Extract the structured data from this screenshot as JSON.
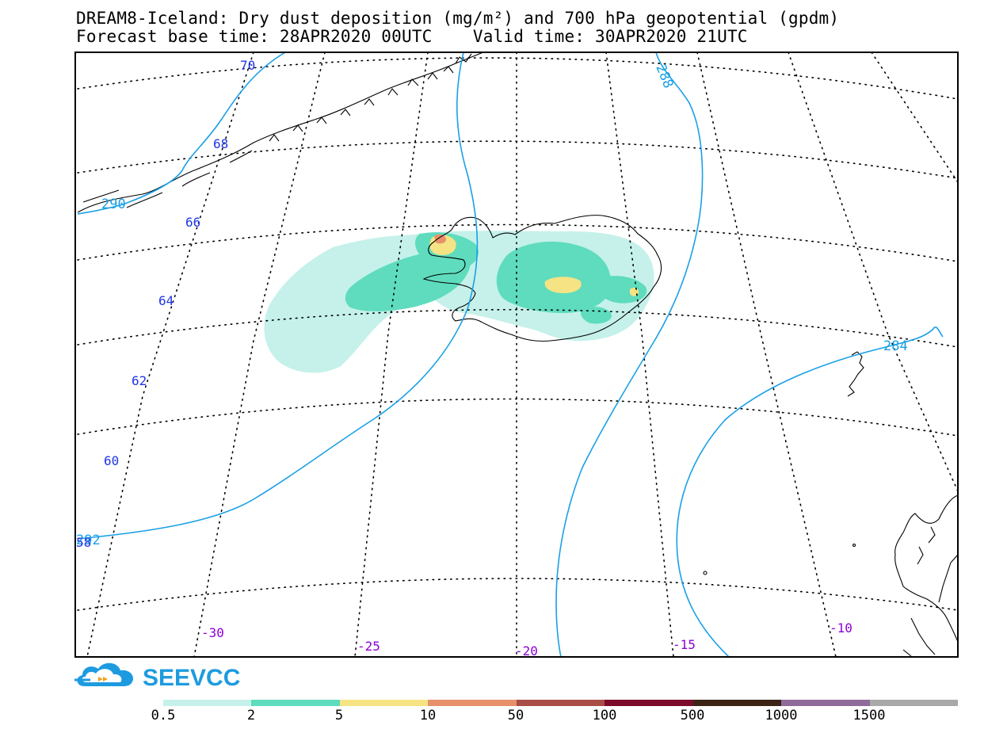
{
  "title": {
    "line1": "DREAM8-Iceland: Dry dust deposition (mg/m²) and 700 hPa geopotential (gpdm)",
    "line2": "Forecast base time: 28APR2020 00UTC    Valid time: 30APR2020 21UTC"
  },
  "logo": {
    "text": "SEEVCCC",
    "icon": "cloud-arrow-icon",
    "color": "#1e9be0"
  },
  "map": {
    "latitude_labels": [
      "70",
      "68",
      "66",
      "64",
      "62",
      "60",
      "58"
    ],
    "longitude_labels": [
      "-30",
      "-25",
      "-20",
      "-15",
      "-10"
    ],
    "contour_labels": [
      "288",
      "290",
      "284",
      "292"
    ],
    "colors": {
      "latitude_label": "#2136e8",
      "longitude_label": "#8b00d8",
      "contour": "#1aa0e6",
      "grid": "#000000",
      "coastline": "#000000"
    }
  },
  "colorbar": {
    "ticks": [
      "0.5",
      "2",
      "5",
      "10",
      "50",
      "100",
      "500",
      "1000",
      "1500"
    ],
    "colors": [
      "#c5f1ea",
      "#5edcbd",
      "#f6e384",
      "#e6916b",
      "#a84e46",
      "#7c0a2a",
      "#3b2415",
      "#8f6c9a",
      "#a9a9a9"
    ]
  }
}
